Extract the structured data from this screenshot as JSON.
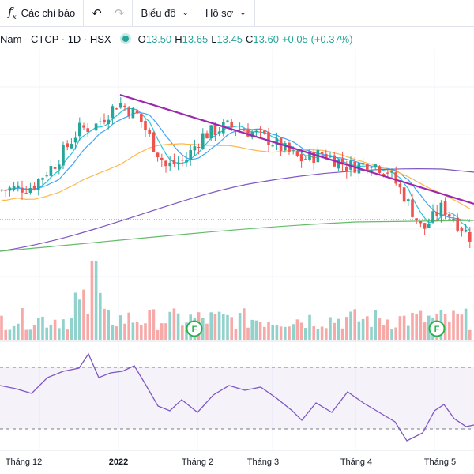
{
  "toolbar": {
    "indicators_label": "Các chỉ báo",
    "chart_type_label": "Biểu đồ",
    "profile_label": "Hồ sơ"
  },
  "legend": {
    "symbol": "Nam - CTCP · 1D · HSX",
    "open": "13.50",
    "high": "13.65",
    "low": "13.45",
    "close": "13.60",
    "change": "+0.05 (+0.37%)"
  },
  "colors": {
    "up": "#26a69a",
    "down": "#ef5350",
    "trendline": "#9c27b0",
    "ma_fast": "#26c6da",
    "ma_mid": "#42a5f5",
    "ma_slow": "#ffb74d",
    "ma_long": "#7e57c2",
    "ma_vlong": "#66bb6a",
    "rsi": "#7e57c2"
  },
  "chart_data": {
    "type": "candlestick",
    "x_labels": [
      "Tháng 12",
      "2022",
      "Tháng 2",
      "Tháng 3",
      "Tháng 4",
      "Tháng 5"
    ],
    "bold_x_labels": [
      "2022"
    ],
    "event_marker_label": "F",
    "rsi_levels": [
      70,
      30
    ],
    "price_range": [
      12.2,
      17.6
    ]
  }
}
